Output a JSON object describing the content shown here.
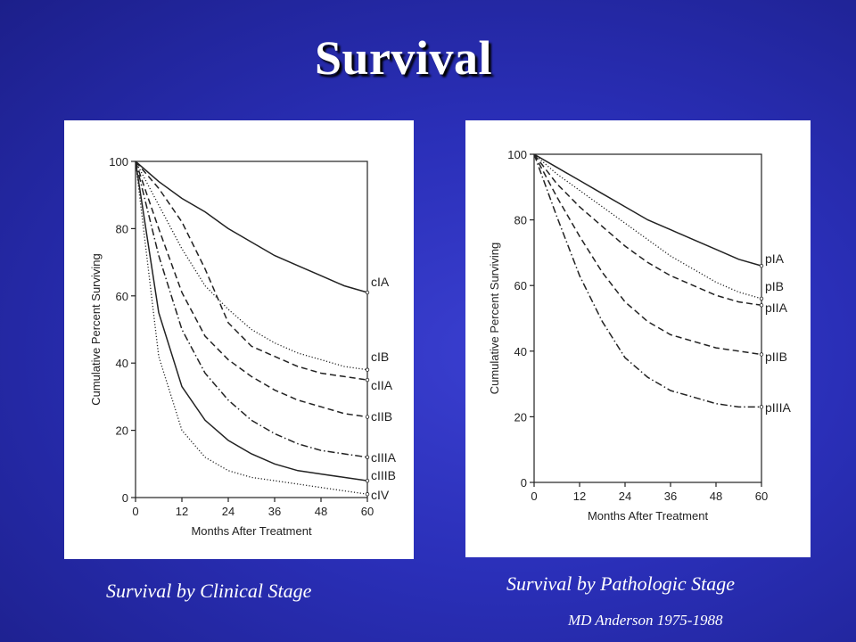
{
  "slide": {
    "title": "Survival",
    "caption_clinical": "Survival by Clinical Stage",
    "caption_pathologic": "Survival by Pathologic Stage",
    "source_note": "MD Anderson 1975-1988"
  },
  "chart_data": [
    {
      "type": "line",
      "id": "clinical",
      "xlabel": "Months After Treatment",
      "ylabel": "Cumulative Percent Surviving",
      "xticks": [
        0,
        12,
        24,
        36,
        48,
        60
      ],
      "yticks": [
        0,
        20,
        40,
        60,
        80,
        100
      ],
      "xlim": [
        0,
        60
      ],
      "ylim": [
        0,
        100
      ],
      "x": [
        0,
        6,
        12,
        18,
        24,
        30,
        36,
        42,
        48,
        54,
        60
      ],
      "series": [
        {
          "name": "cIA",
          "style": "solid",
          "values": [
            100,
            94,
            89,
            85,
            80,
            76,
            72,
            69,
            66,
            63,
            61
          ]
        },
        {
          "name": "cIB",
          "style": "dotted",
          "values": [
            100,
            87,
            74,
            63,
            56,
            50,
            46,
            43,
            41,
            39,
            38
          ]
        },
        {
          "name": "cIIA",
          "style": "dashed",
          "values": [
            100,
            92,
            82,
            68,
            52,
            45,
            42,
            39,
            37,
            36,
            35
          ]
        },
        {
          "name": "cIIB",
          "style": "dashed",
          "values": [
            100,
            80,
            61,
            48,
            41,
            36,
            32,
            29,
            27,
            25,
            24
          ]
        },
        {
          "name": "cIIIA",
          "style": "dashdot",
          "values": [
            100,
            72,
            50,
            37,
            29,
            23,
            19,
            16,
            14,
            13,
            12
          ]
        },
        {
          "name": "cIIIB",
          "style": "solid",
          "values": [
            100,
            55,
            33,
            23,
            17,
            13,
            10,
            8,
            7,
            6,
            5
          ]
        },
        {
          "name": "cIV",
          "style": "dotted",
          "values": [
            100,
            42,
            20,
            12,
            8,
            6,
            5,
            4,
            3,
            2,
            1
          ]
        }
      ]
    },
    {
      "type": "line",
      "id": "pathologic",
      "xlabel": "Months After Treatment",
      "ylabel": "Cumulative Percent Surviving",
      "xticks": [
        0,
        12,
        24,
        36,
        48,
        60
      ],
      "yticks": [
        0,
        20,
        40,
        60,
        80,
        100
      ],
      "xlim": [
        0,
        60
      ],
      "ylim": [
        0,
        100
      ],
      "x": [
        0,
        6,
        12,
        18,
        24,
        30,
        36,
        42,
        48,
        54,
        60
      ],
      "series": [
        {
          "name": "pIA",
          "style": "solid",
          "values": [
            100,
            96,
            92,
            88,
            84,
            80,
            77,
            74,
            71,
            68,
            66
          ]
        },
        {
          "name": "pIB",
          "style": "dotted",
          "values": [
            100,
            94,
            89,
            84,
            79,
            74,
            69,
            65,
            61,
            58,
            56
          ]
        },
        {
          "name": "pIIA",
          "style": "dashed",
          "values": [
            100,
            91,
            84,
            78,
            72,
            67,
            63,
            60,
            57,
            55,
            54
          ]
        },
        {
          "name": "pIIB",
          "style": "dashed",
          "values": [
            100,
            87,
            75,
            64,
            55,
            49,
            45,
            43,
            41,
            40,
            39
          ]
        },
        {
          "name": "pIIIA",
          "style": "dashdot",
          "values": [
            100,
            81,
            63,
            49,
            38,
            32,
            28,
            26,
            24,
            23,
            23
          ]
        }
      ]
    }
  ]
}
